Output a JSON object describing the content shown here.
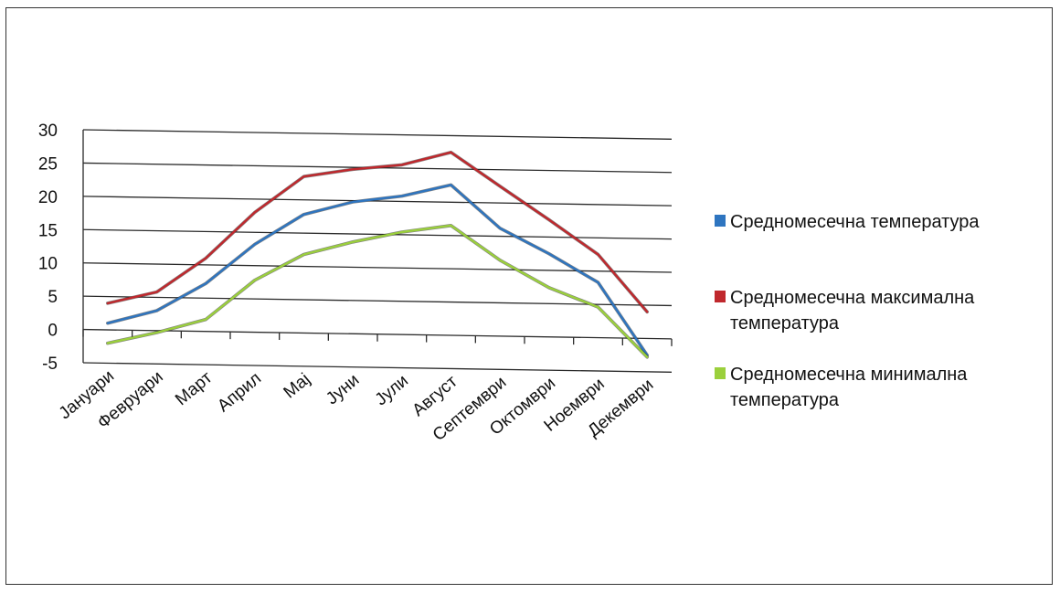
{
  "chart_data": {
    "type": "line",
    "title": "",
    "xlabel": "",
    "ylabel": "",
    "categories": [
      "Јануари",
      "Февруари",
      "Март",
      "Април",
      "Мај",
      "Јуни",
      "Јули",
      "Август",
      "Септември",
      "Октомври",
      "Ноември",
      "Декември"
    ],
    "ylim": [
      -5,
      30
    ],
    "yticks": [
      "30",
      "25",
      "20",
      "15",
      "10",
      "5",
      "0",
      "-5"
    ],
    "grid": "horizontal",
    "legend_position": "right",
    "series": [
      {
        "name": "Средномесечна температура",
        "color": "#2e75c0",
        "values": [
          1.0,
          3.0,
          7.2,
          13.2,
          17.8,
          19.8,
          20.8,
          22.6,
          16.2,
          12.5,
          8.3,
          -2.5
        ]
      },
      {
        "name": "Средномесечна максимална температура",
        "color": "#c0282d",
        "values": [
          4.0,
          5.8,
          11.0,
          18.0,
          23.5,
          24.7,
          25.5,
          27.5,
          22.5,
          17.6,
          12.5,
          4.0
        ]
      },
      {
        "name": "Средномесечна минимална температура",
        "color": "#9bd03c",
        "values": [
          -2.0,
          -0.3,
          1.8,
          7.8,
          11.8,
          13.8,
          15.4,
          16.5,
          11.4,
          7.4,
          4.6,
          -2.8
        ]
      }
    ]
  }
}
